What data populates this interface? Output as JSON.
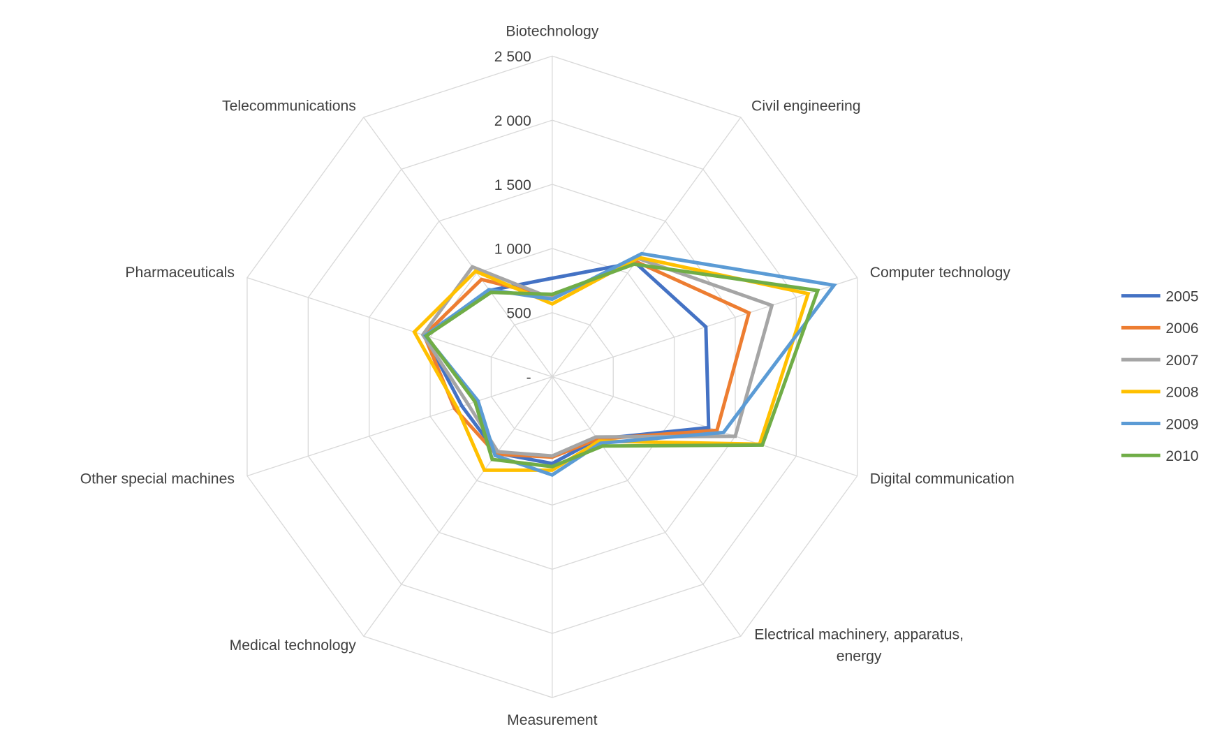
{
  "chart_data": {
    "type": "radar",
    "categories": [
      "Biotechnology",
      "Civil engineering",
      "Computer technology",
      "Digital communication",
      "Electrical machinery, apparatus, energy",
      "Measurement",
      "Medical technology",
      "Other special machines",
      "Pharmaceuticals",
      "Telecommunications"
    ],
    "category_label_lines": [
      [
        "Biotechnology"
      ],
      [
        "Civil engineering"
      ],
      [
        "Computer technology"
      ],
      [
        "Digital communication"
      ],
      [
        "Electrical machinery, apparatus,",
        "energy"
      ],
      [
        "Measurement"
      ],
      [
        "Medical technology"
      ],
      [
        "Other special machines"
      ],
      [
        "Pharmaceuticals"
      ],
      [
        "Telecommunications"
      ]
    ],
    "rlim": [
      0,
      2500
    ],
    "ticks": [
      0,
      500,
      1000,
      1500,
      2000,
      2500
    ],
    "tick_labels": [
      "-",
      "500",
      "1 000",
      "1 500",
      "2 000",
      "2 500"
    ],
    "grid": true,
    "legend_position": "right",
    "series": [
      {
        "name": "2005",
        "color": "#4472C4",
        "values": [
          768,
          1100,
          1259,
          1282,
          600,
          676,
          735,
          740,
          1045,
          832
        ]
      },
      {
        "name": "2006",
        "color": "#ED7D31",
        "values": [
          620,
          1110,
          1612,
          1350,
          600,
          626,
          745,
          800,
          1050,
          938
        ]
      },
      {
        "name": "2007",
        "color": "#A5A5A5",
        "values": [
          610,
          1140,
          1800,
          1500,
          580,
          617,
          722,
          690,
          1060,
          1059
        ]
      },
      {
        "name": "2008",
        "color": "#FFC000",
        "values": [
          568,
          1149,
          2097,
          1700,
          620,
          728,
          900,
          780,
          1130,
          1017
        ]
      },
      {
        "name": "2009",
        "color": "#5B9BD5",
        "values": [
          605,
          1186,
          2309,
          1404,
          640,
          765,
          758,
          608,
          1040,
          839
        ]
      },
      {
        "name": "2010",
        "color": "#70AD47",
        "values": [
          643,
          1085,
          2176,
          1722,
          667,
          700,
          796,
          632,
          1032,
          813
        ]
      }
    ]
  }
}
